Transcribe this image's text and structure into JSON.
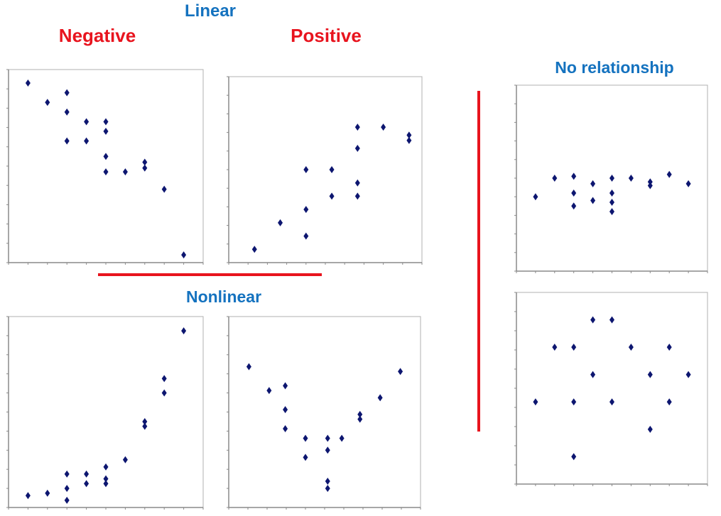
{
  "headings": {
    "linear": "Linear",
    "negative": "Negative",
    "positive": "Positive",
    "nonlinear": "Nonlinear",
    "no_relationship": "No relationship"
  },
  "colors": {
    "heading_blue": "#1472bf",
    "heading_red": "#e8141e",
    "marker": "#0d1670",
    "axis": "#8a8a8a"
  },
  "chart_data": [
    {
      "id": "linear-negative",
      "type": "scatter",
      "title": "",
      "xlabel": "",
      "ylabel": "",
      "xlim": [
        0,
        10
      ],
      "ylim": [
        0,
        10
      ],
      "grid": false,
      "points": [
        [
          1,
          9.3
        ],
        [
          2,
          8.3
        ],
        [
          3,
          8.8
        ],
        [
          3,
          7.8
        ],
        [
          3,
          6.3
        ],
        [
          4,
          7.3
        ],
        [
          4,
          6.3
        ],
        [
          5,
          7.3
        ],
        [
          5,
          6.8
        ],
        [
          5,
          5.5
        ],
        [
          5,
          4.7
        ],
        [
          6,
          4.7
        ],
        [
          7,
          5.2
        ],
        [
          7,
          4.9
        ],
        [
          8,
          3.8
        ],
        [
          9,
          0.4
        ]
      ]
    },
    {
      "id": "linear-positive",
      "type": "scatter",
      "title": "",
      "xlabel": "",
      "ylabel": "",
      "xlim": [
        0,
        7.5
      ],
      "ylim": [
        0,
        7
      ],
      "grid": false,
      "points": [
        [
          1,
          0.5
        ],
        [
          2,
          1.5
        ],
        [
          3,
          1
        ],
        [
          3,
          2
        ],
        [
          3,
          3.5
        ],
        [
          4,
          2.5
        ],
        [
          4,
          3.5
        ],
        [
          5,
          2.5
        ],
        [
          5,
          3
        ],
        [
          5,
          4.3
        ],
        [
          5,
          5.1
        ],
        [
          6,
          5.1
        ],
        [
          7,
          4.6
        ],
        [
          7,
          4.8
        ]
      ]
    },
    {
      "id": "nonlinear-growth",
      "type": "scatter",
      "title": "",
      "xlabel": "",
      "ylabel": "",
      "xlim": [
        0,
        10
      ],
      "ylim": [
        0,
        8
      ],
      "grid": false,
      "points": [
        [
          1,
          0.5
        ],
        [
          2,
          0.6
        ],
        [
          3,
          0.3
        ],
        [
          3,
          0.8
        ],
        [
          3,
          1.4
        ],
        [
          4,
          1
        ],
        [
          4,
          1.4
        ],
        [
          5,
          1
        ],
        [
          5,
          1.2
        ],
        [
          5,
          1.7
        ],
        [
          6,
          2
        ],
        [
          7,
          3.4
        ],
        [
          7,
          3.6
        ],
        [
          8,
          4.8
        ],
        [
          8,
          5.4
        ],
        [
          9,
          7.4
        ]
      ]
    },
    {
      "id": "nonlinear-u-shape",
      "type": "scatter",
      "title": "",
      "xlabel": "",
      "ylabel": "",
      "xlim": [
        0,
        9.5
      ],
      "ylim": [
        0,
        8
      ],
      "grid": false,
      "points": [
        [
          1,
          5.9
        ],
        [
          2,
          4.9
        ],
        [
          2.8,
          5.1
        ],
        [
          2.8,
          4.1
        ],
        [
          2.8,
          3.3
        ],
        [
          3.8,
          2.9
        ],
        [
          3.8,
          2.1
        ],
        [
          4.9,
          2.9
        ],
        [
          4.9,
          2.4
        ],
        [
          4.9,
          1.1
        ],
        [
          4.9,
          0.8
        ],
        [
          5.6,
          2.9
        ],
        [
          6.5,
          3.7
        ],
        [
          6.5,
          3.9
        ],
        [
          7.5,
          4.6
        ],
        [
          8.5,
          5.7
        ]
      ]
    },
    {
      "id": "no-relationship-flat",
      "type": "scatter",
      "title": "",
      "xlabel": "",
      "ylabel": "",
      "xlim": [
        0,
        10
      ],
      "ylim": [
        0,
        10
      ],
      "grid": false,
      "points": [
        [
          1,
          4
        ],
        [
          2,
          5
        ],
        [
          3,
          5.1
        ],
        [
          3,
          4.2
        ],
        [
          3,
          3.5
        ],
        [
          4,
          4.7
        ],
        [
          4,
          3.8
        ],
        [
          5,
          5
        ],
        [
          5,
          4.2
        ],
        [
          5,
          3.7
        ],
        [
          5,
          3.2
        ],
        [
          6,
          5
        ],
        [
          7,
          4.8
        ],
        [
          7,
          4.6
        ],
        [
          8,
          5.2
        ],
        [
          9,
          4.7
        ]
      ]
    },
    {
      "id": "no-relationship-scatter",
      "type": "scatter",
      "title": "",
      "xlabel": "",
      "ylabel": "",
      "xlim": [
        0,
        10
      ],
      "ylim": [
        0,
        7
      ],
      "grid": false,
      "points": [
        [
          1,
          3
        ],
        [
          2,
          5
        ],
        [
          3,
          5
        ],
        [
          3,
          3
        ],
        [
          3,
          1
        ],
        [
          4,
          6
        ],
        [
          4,
          4
        ],
        [
          5,
          6
        ],
        [
          5,
          3
        ],
        [
          6,
          5
        ],
        [
          7,
          4
        ],
        [
          7,
          2
        ],
        [
          8,
          5
        ],
        [
          8,
          3
        ],
        [
          9,
          4
        ]
      ]
    }
  ]
}
